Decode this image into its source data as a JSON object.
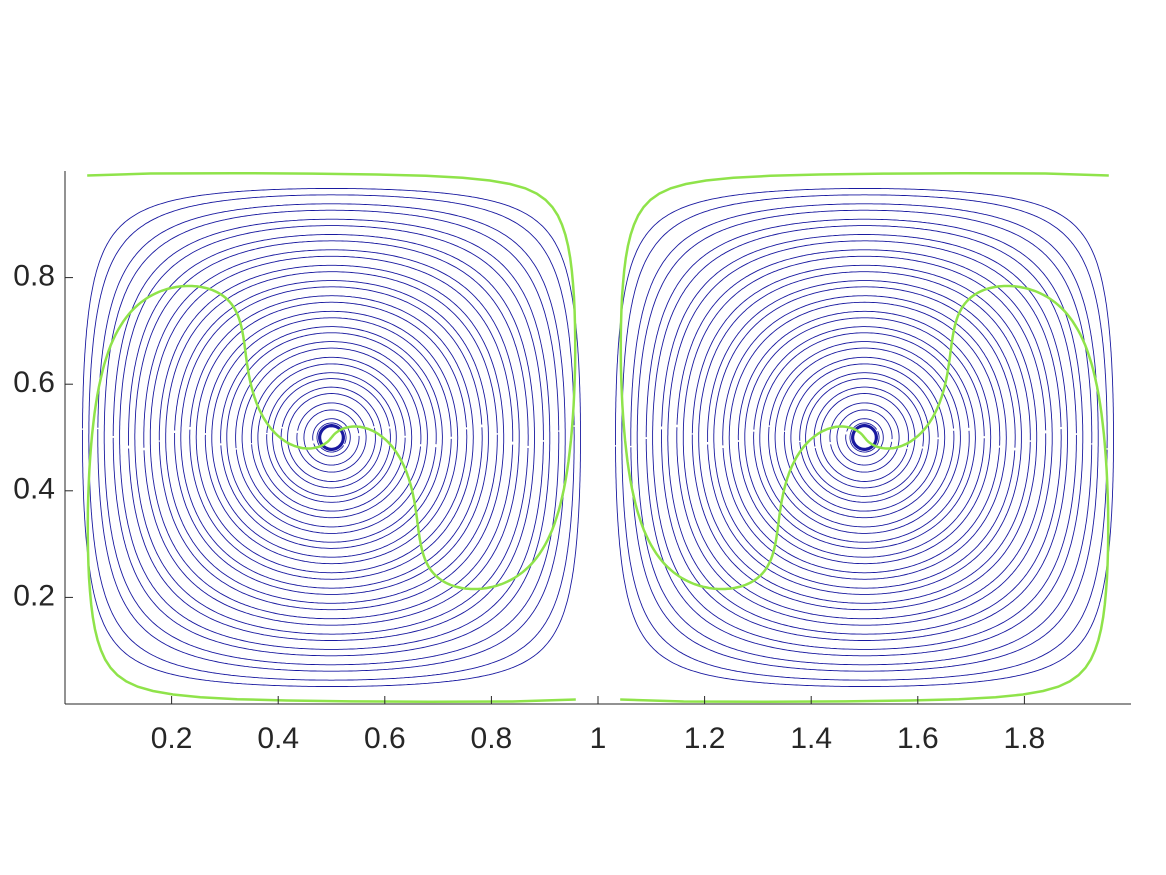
{
  "chart_data": {
    "type": "streamline",
    "xlim": [
      0,
      2
    ],
    "ylim": [
      0,
      1
    ],
    "xticks": [
      0.2,
      0.4,
      0.6,
      0.8,
      1,
      1.2,
      1.4,
      1.6,
      1.8
    ],
    "yticks": [
      0.2,
      0.4,
      0.6,
      0.8
    ],
    "line_color": "#1a1aa0",
    "material_line_color": "#8fe34a"
  }
}
